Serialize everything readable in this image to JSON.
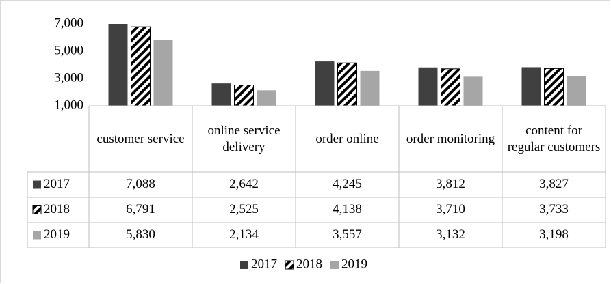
{
  "chart_data": {
    "type": "bar",
    "categories": [
      "customer service",
      "online service delivery",
      "order online",
      "order monitoring",
      "content for regular customers"
    ],
    "series": [
      {
        "name": "2017",
        "color": "#404040",
        "values": [
          7088,
          2642,
          4245,
          3812,
          3827
        ],
        "value_labels": [
          "7,088",
          "2,642",
          "4,245",
          "3,812",
          "3,827"
        ]
      },
      {
        "name": "2018",
        "color": "#000000",
        "pattern": "diagonal",
        "values": [
          6791,
          2525,
          4138,
          3710,
          3733
        ],
        "value_labels": [
          "6,791",
          "2,525",
          "4,138",
          "3,710",
          "3,733"
        ]
      },
      {
        "name": "2019",
        "color": "#a6a6a6",
        "values": [
          5830,
          2134,
          3557,
          3132,
          3198
        ],
        "value_labels": [
          "5,830",
          "2,134",
          "3,557",
          "3,132",
          "3,198"
        ]
      }
    ],
    "ylim": [
      1000,
      7000
    ],
    "yticks": [
      {
        "value": 1000,
        "label": "1,000"
      },
      {
        "value": 3000,
        "label": "3,000"
      },
      {
        "value": 5000,
        "label": "5,000"
      },
      {
        "value": 7000,
        "label": "7,000"
      }
    ],
    "grid": false,
    "legend": "bottom",
    "data_table": true
  }
}
